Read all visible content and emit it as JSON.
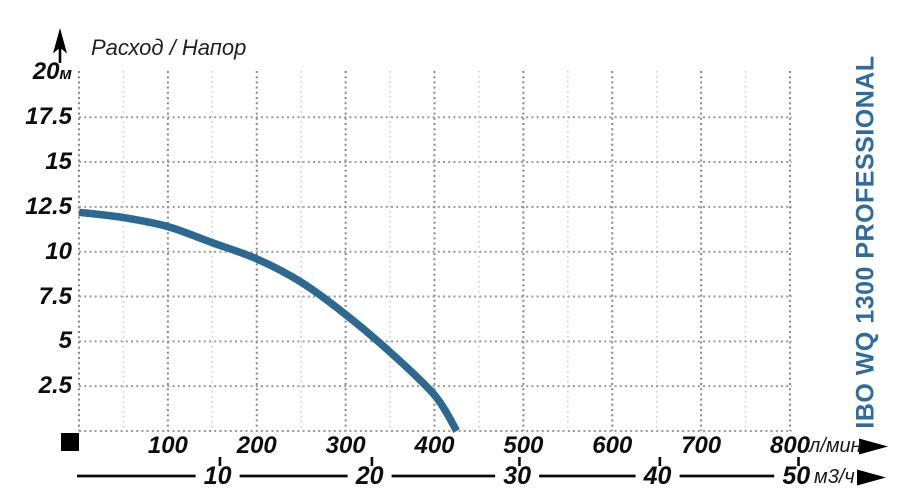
{
  "header": {
    "title": "Расход / Напор"
  },
  "brand": {
    "label": "IBO WQ 1300 PROFESSIONAL",
    "color": "#2e6b9e"
  },
  "chart_data": {
    "type": "line",
    "title": "Расход / Напор",
    "series": [
      {
        "name": "IBO WQ 1300 PROFESSIONAL",
        "color": "#2b6992",
        "stroke_width": 7.5,
        "points": [
          [
            0,
            12.2
          ],
          [
            50,
            11.9
          ],
          [
            100,
            11.4
          ],
          [
            150,
            10.5
          ],
          [
            200,
            9.6
          ],
          [
            250,
            8.3
          ],
          [
            300,
            6.5
          ],
          [
            350,
            4.4
          ],
          [
            400,
            2.0
          ],
          [
            425,
            0
          ]
        ]
      }
    ],
    "x_axis_primary": {
      "unit": "л/мин",
      "ticks": [
        100,
        200,
        300,
        400,
        500,
        600,
        700,
        800
      ],
      "range": [
        0,
        800
      ],
      "arrow": "right"
    },
    "x_axis_secondary": {
      "unit": "м3/ч",
      "ticks": [
        10,
        20,
        30,
        40,
        50
      ],
      "tick_positions_lpm": [
        156,
        327,
        493,
        651,
        807
      ],
      "arrow": "right"
    },
    "y_axis": {
      "label": "Расход / Напор",
      "unit": "м",
      "ticks": [
        20,
        17.5,
        15,
        12.5,
        10,
        7.5,
        5,
        2.5
      ],
      "range": [
        0,
        20
      ],
      "unit_shown_on_first_tick_only": true,
      "arrow": "up"
    },
    "grid": {
      "show": true,
      "style": "dotted",
      "vertical_major_every_lpm": 100,
      "vertical_minor_every_lpm": 50,
      "horizontal_every_m": 2.5
    },
    "origin_marker": "black-square"
  }
}
